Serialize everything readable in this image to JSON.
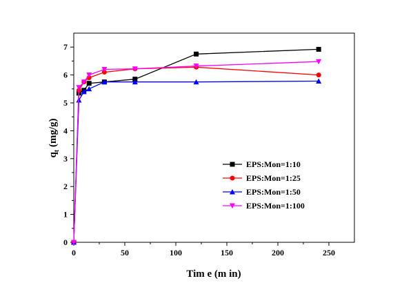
{
  "chart_data": {
    "type": "line",
    "xlabel": "Tim e (m in)",
    "ylabel_main": "q",
    "ylabel_sub": "t",
    "ylabel_unit": " (mg/g)",
    "xlim": [
      0,
      275
    ],
    "ylim": [
      0,
      7.5
    ],
    "xticks": [
      0,
      50,
      100,
      150,
      200,
      250
    ],
    "yticks": [
      0,
      1,
      2,
      3,
      4,
      5,
      6,
      7
    ],
    "grid": false,
    "legend_position": "bottom-right",
    "series": [
      {
        "name": "EPS:Mon=1:10",
        "color": "#000000",
        "marker": "square",
        "x": [
          0,
          5,
          10,
          15,
          30,
          60,
          120,
          240
        ],
        "y": [
          0,
          5.35,
          5.45,
          5.7,
          5.75,
          5.85,
          6.75,
          6.92
        ]
      },
      {
        "name": "EPS:Mon=1:25",
        "color": "#ff0000",
        "marker": "circle",
        "x": [
          0,
          5,
          10,
          15,
          30,
          60,
          120,
          240
        ],
        "y": [
          0,
          5.45,
          5.75,
          5.9,
          6.1,
          6.22,
          6.28,
          6.0
        ]
      },
      {
        "name": "EPS:Mon=1:50",
        "color": "#0000ff",
        "marker": "triangle-up",
        "x": [
          0,
          5,
          10,
          15,
          30,
          60,
          120,
          240
        ],
        "y": [
          0,
          5.1,
          5.4,
          5.5,
          5.75,
          5.75,
          5.75,
          5.78
        ]
      },
      {
        "name": "EPS:Mon=1:100",
        "color": "#ff00ff",
        "marker": "triangle-down",
        "x": [
          0,
          5,
          10,
          15,
          30,
          60,
          120,
          240
        ],
        "y": [
          0,
          5.55,
          5.75,
          6.0,
          6.2,
          6.22,
          6.32,
          6.48
        ]
      }
    ]
  }
}
